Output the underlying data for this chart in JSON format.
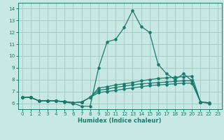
{
  "title": "",
  "xlabel": "Humidex (Indice chaleur)",
  "ylabel": "",
  "xlim": [
    -0.5,
    23.5
  ],
  "ylim": [
    5.5,
    14.5
  ],
  "xticks": [
    0,
    1,
    2,
    3,
    4,
    5,
    6,
    7,
    8,
    9,
    10,
    11,
    12,
    13,
    14,
    15,
    16,
    17,
    18,
    19,
    20,
    21,
    22,
    23
  ],
  "yticks": [
    6,
    7,
    8,
    9,
    10,
    11,
    12,
    13,
    14
  ],
  "bg_color": "#c8e8e4",
  "line_color": "#1a7a6e",
  "grid_color": "#a0c8c4",
  "lines": [
    [
      6.5,
      6.5,
      6.2,
      6.2,
      6.2,
      6.1,
      6.0,
      5.75,
      5.75,
      9.0,
      11.2,
      11.4,
      12.4,
      13.85,
      12.5,
      12.0,
      9.3,
      8.5,
      8.0,
      8.5,
      7.9,
      6.1,
      6.0
    ],
    [
      6.5,
      6.5,
      6.2,
      6.2,
      6.2,
      6.15,
      6.05,
      6.1,
      6.5,
      7.3,
      7.4,
      7.55,
      7.65,
      7.75,
      7.9,
      8.0,
      8.1,
      8.15,
      8.2,
      8.25,
      8.3,
      6.1,
      6.05
    ],
    [
      6.5,
      6.5,
      6.2,
      6.2,
      6.2,
      6.15,
      6.05,
      6.1,
      6.5,
      7.1,
      7.2,
      7.35,
      7.45,
      7.55,
      7.65,
      7.7,
      7.75,
      7.8,
      7.85,
      7.9,
      7.9,
      6.1,
      6.05
    ],
    [
      6.5,
      6.5,
      6.2,
      6.2,
      6.2,
      6.15,
      6.05,
      6.1,
      6.5,
      6.9,
      7.0,
      7.1,
      7.2,
      7.3,
      7.4,
      7.5,
      7.55,
      7.6,
      7.65,
      7.7,
      7.7,
      6.1,
      6.05
    ]
  ]
}
